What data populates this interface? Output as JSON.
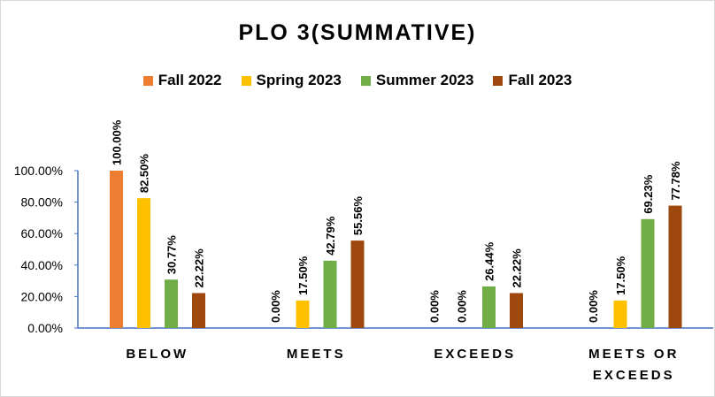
{
  "chart_data": {
    "type": "bar",
    "title": "PLO 3(SUMMATIVE)",
    "categories": [
      [
        "BELOW"
      ],
      [
        "MEETS"
      ],
      [
        "EXCEEDS"
      ],
      [
        "MEETS OR",
        "EXCEEDS"
      ]
    ],
    "series": [
      {
        "name": "Fall 2022",
        "color": "#ED7D31",
        "values": [
          100.0,
          0.0,
          0.0,
          0.0
        ],
        "labels": [
          "100.00%",
          "0.00%",
          "0.00%",
          "0.00%"
        ],
        "drawn": [
          true,
          false,
          false,
          false
        ]
      },
      {
        "name": "Spring 2023",
        "color": "#FFC000",
        "values": [
          82.5,
          17.5,
          0.0,
          17.5
        ],
        "labels": [
          "82.50%",
          "17.50%",
          "0.00%",
          "17.50%"
        ],
        "drawn": [
          true,
          true,
          false,
          true
        ]
      },
      {
        "name": "Summer 2023",
        "color": "#70AD47",
        "values": [
          30.77,
          42.79,
          26.44,
          69.23
        ],
        "labels": [
          "30.77%",
          "42.79%",
          "26.44%",
          "69.23%"
        ],
        "drawn": [
          true,
          true,
          true,
          true
        ]
      },
      {
        "name": "Fall 2023",
        "color": "#9E480E",
        "values": [
          22.22,
          55.56,
          22.22,
          77.78
        ],
        "labels": [
          "22.22%",
          "55.56%",
          "22.22%",
          "77.78%"
        ],
        "drawn": [
          true,
          true,
          true,
          true
        ]
      }
    ],
    "yticks": [
      "0.00%",
      "20.00%",
      "40.00%",
      "60.00%",
      "80.00%",
      "100.00%"
    ],
    "ylim": [
      0,
      100
    ],
    "legend": "top",
    "grid": false
  }
}
